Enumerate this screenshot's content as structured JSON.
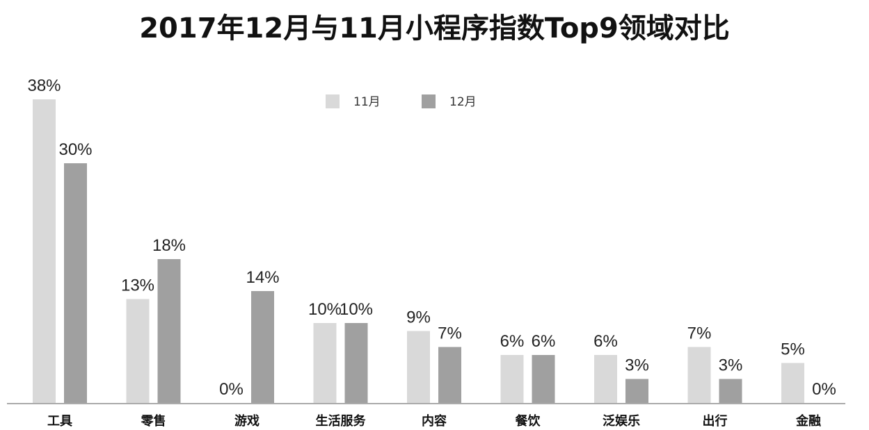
{
  "chart_data": {
    "type": "bar",
    "title": "2017年12月与11月小程序指数Top9领域对比",
    "categories": [
      "工具",
      "零售",
      "游戏",
      "生活服务",
      "内容",
      "餐饮",
      "泛娱乐",
      "出行",
      "金融"
    ],
    "series": [
      {
        "name": "11月",
        "values": [
          38,
          13,
          0,
          10,
          9,
          6,
          6,
          7,
          5
        ],
        "color": "#d9d9d9"
      },
      {
        "name": "12月",
        "values": [
          30,
          18,
          14,
          10,
          7,
          6,
          3,
          3,
          0
        ],
        "color": "#a0a0a0"
      }
    ],
    "value_format": "%",
    "ylim": [
      0,
      38
    ],
    "legend": "top-center",
    "grid": false,
    "axis_color": "#aaaaaa"
  }
}
